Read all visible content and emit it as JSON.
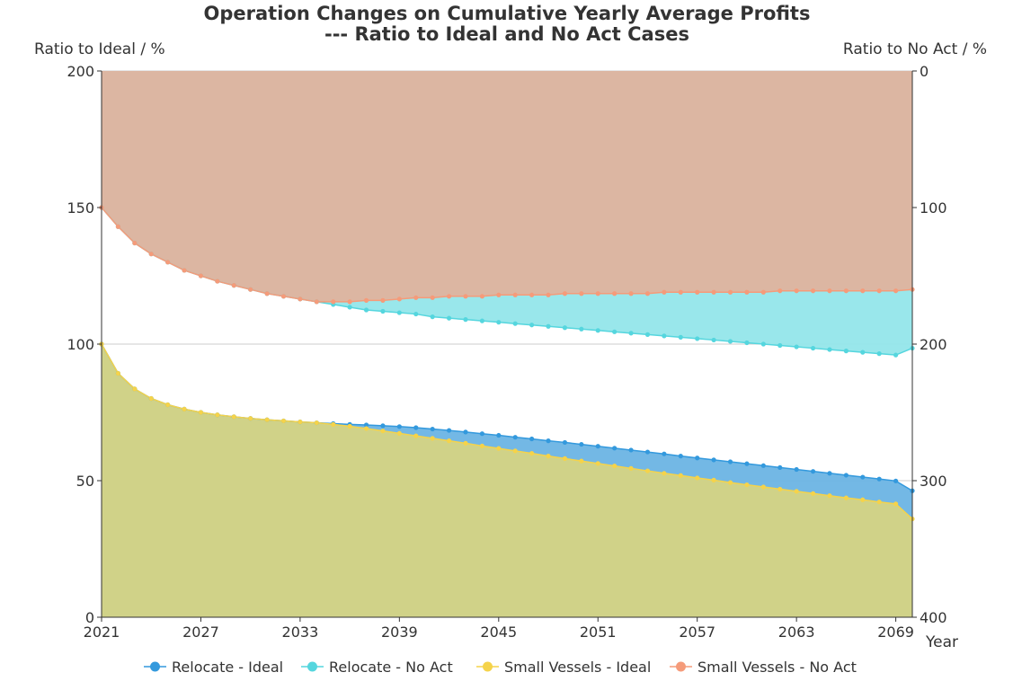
{
  "chart_data": {
    "type": "area",
    "title": "Operation Changes on Cumulative Yearly Average Profits",
    "subtitle": "--- Ratio to Ideal and No Act Cases",
    "xlabel": "Year",
    "ylabel_left": "Ratio to Ideal / %",
    "ylabel_right": "Ratio to No Act / %",
    "ylim_left": [
      0,
      200
    ],
    "ylim_right": [
      0,
      400
    ],
    "right_axis_inverted": true,
    "grid": true,
    "legend_position": "bottom",
    "x_ticks": [
      "2021",
      "2027",
      "2033",
      "2039",
      "2045",
      "2051",
      "2057",
      "2063",
      "2069"
    ],
    "y_ticks_left": [
      "0",
      "50",
      "100",
      "150",
      "200"
    ],
    "y_ticks_right": [
      "400",
      "300",
      "200",
      "100",
      "0"
    ],
    "x": [
      2021,
      2022,
      2023,
      2024,
      2025,
      2026,
      2027,
      2028,
      2029,
      2030,
      2031,
      2032,
      2033,
      2034,
      2035,
      2036,
      2037,
      2038,
      2039,
      2040,
      2041,
      2042,
      2043,
      2044,
      2045,
      2046,
      2047,
      2048,
      2049,
      2050,
      2051,
      2052,
      2053,
      2054,
      2055,
      2056,
      2057,
      2058,
      2059,
      2060,
      2061,
      2062,
      2063,
      2064,
      2065,
      2066,
      2067,
      2068,
      2069,
      2070
    ],
    "series": [
      {
        "name": "Relocate - Ideal",
        "axis": "left",
        "color": "#3399dd",
        "fill": "#6cb4e4",
        "values": [
          100,
          89.3,
          83.6,
          80.1,
          77.8,
          76.2,
          75.0,
          74.1,
          73.4,
          72.8,
          72.3,
          71.9,
          71.5,
          71.2,
          70.9,
          70.6,
          70.4,
          70.1,
          69.8,
          69.4,
          68.9,
          68.4,
          67.8,
          67.2,
          66.6,
          65.9,
          65.3,
          64.6,
          64.0,
          63.3,
          62.6,
          61.9,
          61.2,
          60.5,
          59.8,
          59.0,
          58.3,
          57.6,
          56.9,
          56.2,
          55.5,
          54.8,
          54.1,
          53.4,
          52.7,
          52.0,
          51.3,
          50.6,
          49.9,
          46.3
        ]
      },
      {
        "name": "Relocate - No Act",
        "axis": "right",
        "color": "#55d6de",
        "fill": "#93e6ea",
        "values": [
          100,
          114,
          126,
          134,
          140,
          146,
          150,
          154,
          157,
          160,
          163,
          165,
          167,
          169,
          171,
          173,
          175,
          176,
          177,
          178,
          180,
          181,
          182,
          183,
          184,
          185,
          186,
          187,
          188,
          189,
          190,
          191,
          192,
          193,
          194,
          195,
          196,
          197,
          198,
          199,
          200,
          201,
          202,
          203,
          204,
          205,
          206,
          207,
          208,
          203
        ]
      },
      {
        "name": "Small Vessels - Ideal",
        "axis": "left",
        "color": "#f5d34a",
        "fill": "#d5d383",
        "values": [
          100,
          89.3,
          83.6,
          80.1,
          77.8,
          76.2,
          75.0,
          74.1,
          73.4,
          72.8,
          72.3,
          71.9,
          71.5,
          71.2,
          70.6,
          69.9,
          69.1,
          68.2,
          67.3,
          66.4,
          65.5,
          64.6,
          63.7,
          62.7,
          61.8,
          60.9,
          60.0,
          59.0,
          58.1,
          57.2,
          56.3,
          55.4,
          54.5,
          53.6,
          52.7,
          51.9,
          51.0,
          50.2,
          49.3,
          48.5,
          47.7,
          46.9,
          46.1,
          45.3,
          44.5,
          43.7,
          43.0,
          42.2,
          41.5,
          36.0
        ]
      },
      {
        "name": "Small Vessels - No Act",
        "axis": "right",
        "color": "#f59b7a",
        "fill": "#dfb39e",
        "values": [
          100,
          114,
          126,
          134,
          140,
          146,
          150,
          154,
          157,
          160,
          163,
          165,
          167,
          169,
          169,
          169,
          168,
          168,
          167,
          166,
          166,
          165,
          165,
          165,
          164,
          164,
          164,
          164,
          163,
          163,
          163,
          163,
          163,
          163,
          162,
          162,
          162,
          162,
          162,
          162,
          162,
          161,
          161,
          161,
          161,
          161,
          161,
          161,
          161,
          160
        ]
      }
    ]
  }
}
